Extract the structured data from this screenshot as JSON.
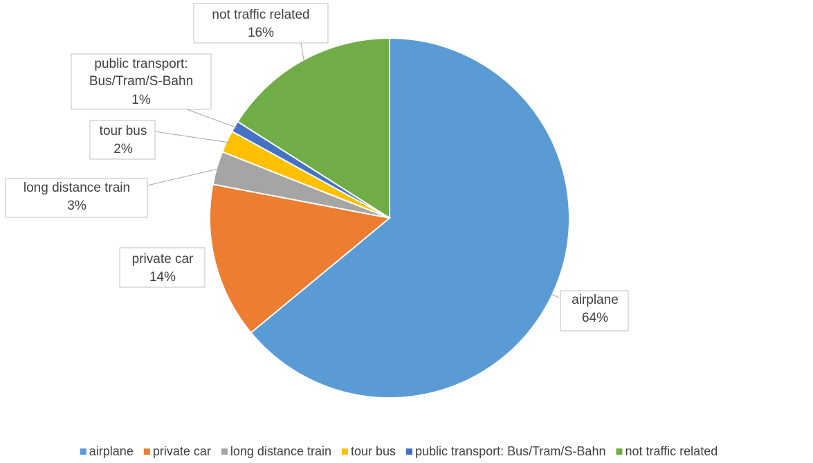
{
  "chart_data": {
    "type": "pie",
    "categories": [
      "airplane",
      "private car",
      "long distance train",
      "tour bus",
      "public transport: Bus/Tram/S-Bahn",
      "not traffic related"
    ],
    "values": [
      64,
      14,
      3,
      2,
      1,
      16
    ],
    "value_labels": [
      "64%",
      "14%",
      "3%",
      "2%",
      "1%",
      "16%"
    ],
    "colors": [
      "#5b9bd5",
      "#ed7d31",
      "#a5a5a5",
      "#ffc000",
      "#4472c4",
      "#70ad47"
    ],
    "legend": "bottom"
  }
}
